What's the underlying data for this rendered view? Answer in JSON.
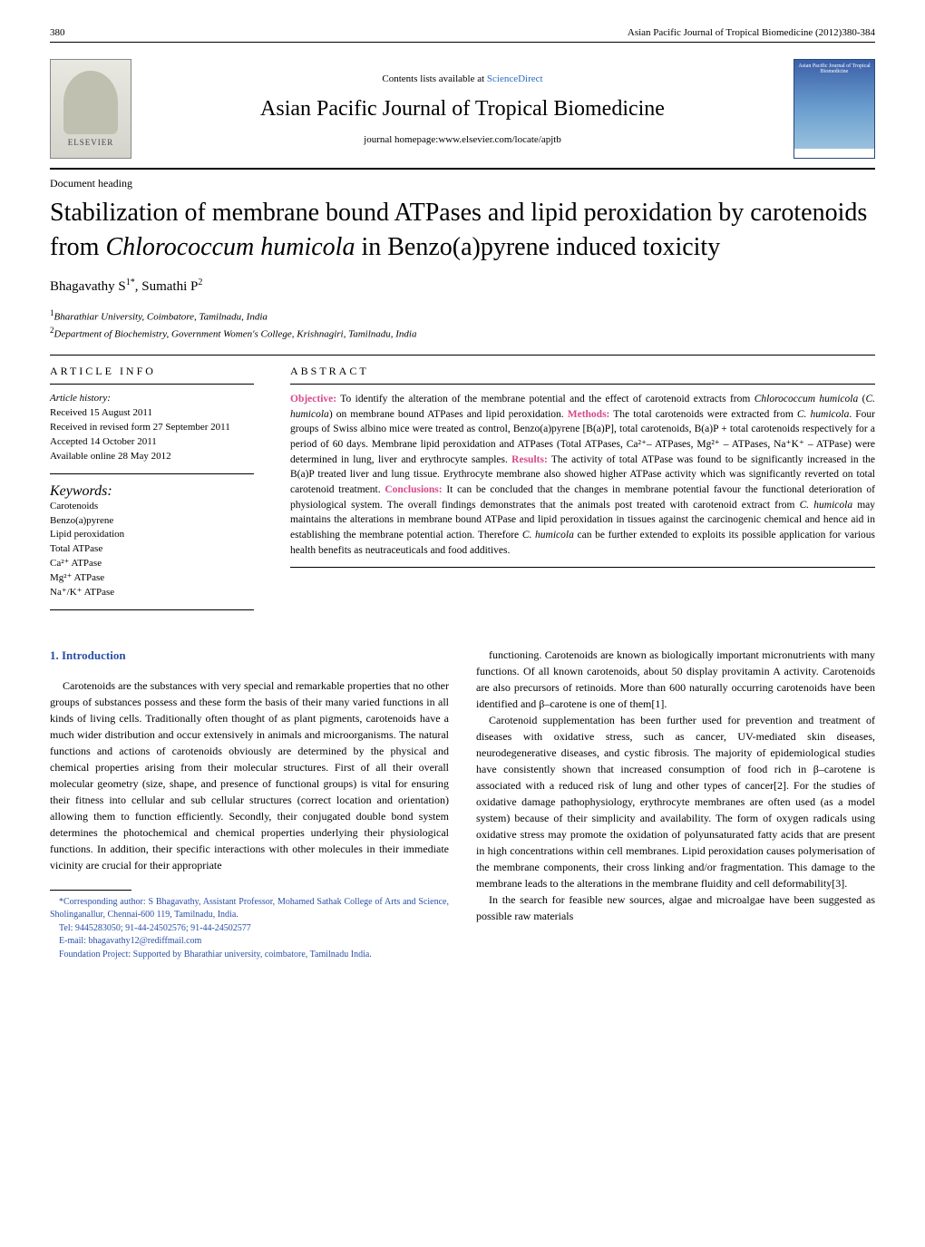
{
  "page_number": "380",
  "running_head": "Asian Pacific Journal of Tropical Biomedicine (2012)380-384",
  "header": {
    "contents_prefix": "Contents lists available at ",
    "contents_link": "ScienceDirect",
    "journal_name": "Asian Pacific Journal of Tropical Biomedicine",
    "homepage_prefix": "journal homepage:",
    "homepage_url": "www.elsevier.com/locate/apjtb",
    "elsevier_label": "ELSEVIER",
    "cover_text": "Asian Pacific Journal of Tropical Biomedicine"
  },
  "colors": {
    "accent_pink": "#d8488b",
    "link_blue": "#2a6cc4",
    "section_blue": "#2a4fa8",
    "cover_gradient_top": "#3b5fa8",
    "cover_gradient_mid": "#6b9fcf",
    "cover_gradient_bottom": "#a4c8e0"
  },
  "doc_heading": "Document heading",
  "title_html": "Stabilization of membrane bound ATPases and lipid peroxidation by carotenoids from <em>Chlorococcum humicola</em> in Benzo(a)pyrene induced toxicity",
  "authors_html": "Bhagavathy S<sup>1*</sup>, Sumathi P<sup>2</sup>",
  "affiliations": [
    {
      "sup": "1",
      "text": "Bharathiar University, Coimbatore, Tamilnadu, India"
    },
    {
      "sup": "2",
      "text": "Department of Biochemistry, Government Women's College, Krishnagiri, Tamilnadu, India"
    }
  ],
  "article_info": {
    "heading": "ARTICLE INFO",
    "history_label": "Article history:",
    "history": [
      "Received 15 August 2011",
      "Received in revised form 27 September 2011",
      "Accepted 14 October 2011",
      "Available online 28 May 2012"
    ],
    "keywords_label": "Keywords:",
    "keywords": [
      "Carotenoids",
      "Benzo(a)pyrene",
      "Lipid peroxidation",
      "Total ATPase",
      "Ca²⁺ ATPase",
      "Mg²⁺ ATPase",
      "Na⁺/K⁺ ATPase"
    ]
  },
  "abstract": {
    "heading": "ABSTRACT",
    "segments": [
      {
        "label": "Objective:",
        "text": " To identify the alteration of the membrane potential and the effect of carotenoid extracts from "
      },
      {
        "italic": "Chlorococcum humicola"
      },
      {
        "text": " ("
      },
      {
        "italic": "C. humicola"
      },
      {
        "text": ") on membrane bound ATPases and lipid peroxidation. "
      },
      {
        "label": "Methods:",
        "text": " The total carotenoids were extracted from "
      },
      {
        "italic": "C. humicola"
      },
      {
        "text": ". Four groups of Swiss albino mice were treated as control, Benzo(a)pyrene [B(a)P], total carotenoids, B(a)P + total carotenoids respectively for a period of 60 days. Membrane lipid peroxidation and ATPases (Total ATPases, Ca²⁺– ATPases, Mg²⁺ – ATPases, Na⁺K⁺ – ATPase) were determined in lung, liver and erythrocyte samples. "
      },
      {
        "label": "Results:",
        "text": " The activity of total ATPase was found to be significantly increased in the B(a)P treated liver and lung tissue. Erythrocyte membrane also showed higher ATPase activity which was significantly reverted on total carotenoid treatment. "
      },
      {
        "label": "Conclusions:",
        "text": " It can be concluded that the changes in membrane potential favour the functional deterioration of physiological system. The overall findings demonstrates that the animals post treated with carotenoid extract from "
      },
      {
        "italic": "C. humicola"
      },
      {
        "text": " may maintains the alterations in membrane bound ATPase and lipid peroxidation in tissues against the carcinogenic chemical and hence aid in establishing the membrane potential action. Therefore "
      },
      {
        "italic": "C. humicola"
      },
      {
        "text": " can be further extended to exploits its possible application for various health benefits as neutraceuticals and food additives."
      }
    ]
  },
  "body": {
    "section1_heading": "1. Introduction",
    "col1_paragraphs": [
      "Carotenoids are the substances with very special and remarkable properties that no other groups of substances possess and these form the basis of their many varied functions in all kinds of living cells. Traditionally often thought of as plant pigments, carotenoids have a much wider distribution and occur extensively in animals and microorganisms. The natural functions and actions of carotenoids obviously are determined by the physical and chemical properties arising from their molecular structures. First of all their overall molecular geometry (size, shape, and presence of functional groups) is vital for ensuring their fitness into cellular and sub cellular structures (correct location and orientation) allowing them to function efficiently. Secondly, their conjugated double bond system determines the photochemical and chemical properties underlying their physiological functions. In addition, their specific interactions with other molecules in their immediate vicinity are crucial for their appropriate"
    ],
    "col2_paragraphs": [
      "functioning. Carotenoids are known as biologically important micronutrients with many functions. Of all known carotenoids, about 50 display provitamin A activity. Carotenoids are also precursors of retinoids. More than 600 naturally occurring carotenoids have been identified and β–carotene is one of them[1].",
      "Carotenoid supplementation has been further used for prevention and treatment of diseases with oxidative stress, such as cancer, UV-mediated skin diseases, neurodegenerative diseases, and cystic fibrosis. The majority of epidemiological studies have consistently shown that increased consumption of food rich in β–carotene is associated with a reduced risk of lung and other types of cancer[2]. For the studies of oxidative damage pathophysiology, erythrocyte membranes are often used (as a model system) because of their simplicity and availability. The form of oxygen radicals using oxidative stress may promote the oxidation of polyunsaturated fatty acids that are present in high concentrations within cell membranes. Lipid peroxidation causes polymerisation of the membrane components, their cross linking and/or fragmentation. This damage to the membrane leads to the alterations in the membrane fluidity and cell deformability[3].",
      "In the search for feasible new sources, algae and microalgae have been suggested as possible raw materials"
    ]
  },
  "footnotes": [
    "*Corresponding author: S Bhagavathy, Assistant Professor, Mohamed Sathak College of Arts and Science, Sholinganallur, Chennai-600 119, Tamilnadu, India.",
    "Tel: 9445283050; 91-44-24502576; 91-44-24502577",
    "E-mail: bhagavathy12@rediffmail.com",
    "Foundation Project: Supported by Bharathiar university, coimbatore, Tamilnadu India."
  ]
}
